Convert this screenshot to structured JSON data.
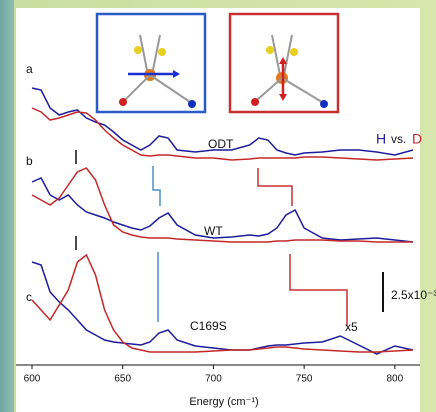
{
  "chart_data": {
    "type": "line",
    "x": [
      600,
      605,
      610,
      615,
      620,
      625,
      630,
      635,
      640,
      645,
      650,
      655,
      660,
      665,
      670,
      675,
      680,
      690,
      700,
      710,
      720,
      725,
      730,
      735,
      740,
      745,
      750,
      760,
      770,
      780,
      790,
      800,
      810
    ],
    "xlim": [
      600,
      810
    ],
    "xticks": [
      600,
      650,
      700,
      750,
      800
    ],
    "ylim": [
      0,
      355
    ],
    "x_label": "Energy (cm⁻¹)",
    "legend_separator": "vs.",
    "scale_bar_label": "2.5x10⁻³",
    "magnification": "x5",
    "panels": [
      {
        "label": "a",
        "sample": "ODT",
        "series": [
          {
            "name": "H",
            "color": "#1c1c9c",
            "values": [
              277,
              275,
              257,
              250,
              253,
              255,
              247,
              243,
              240,
              233,
              225,
              220,
              215,
              220,
              229,
              227,
              215,
              213,
              215,
              215,
              220,
              227,
              225,
              215,
              212,
              210,
              212,
              213,
              215,
              215,
              213,
              210,
              215
            ]
          },
          {
            "name": "D",
            "color": "#c42828",
            "values": [
              257,
              253,
              245,
              247,
              250,
              253,
              252,
              245,
              235,
              227,
              220,
              215,
              210,
              209,
              210,
              210,
              209,
              207,
              207,
              205,
              206,
              207,
              207,
              207,
              207,
              207,
              208,
              208,
              207,
              206,
              205,
              206,
              207
            ]
          }
        ]
      },
      {
        "label": "b",
        "sample": "WT",
        "series": [
          {
            "name": "H",
            "color": "#1c1c9c",
            "values": [
              183,
              187,
              170,
              165,
              170,
              160,
              153,
              150,
              147,
              143,
              140,
              137,
              135,
              139,
              147,
              152,
              140,
              130,
              127,
              128,
              130,
              129,
              131,
              137,
              150,
              155,
              137,
              127,
              125,
              126,
              127,
              125,
              123
            ]
          },
          {
            "name": "D",
            "color": "#c42828",
            "values": [
              170,
              165,
              160,
              167,
              180,
              193,
              197,
              185,
              160,
              140,
              133,
              130,
              128,
              127,
              127,
              127,
              126,
              125,
              124,
              123,
              123,
              123,
              123,
              124,
              124,
              125,
              125,
              125,
              124,
              124,
              123,
              123,
              123
            ]
          }
        ]
      },
      {
        "label": "c",
        "sample": "C169S",
        "series": [
          {
            "name": "H",
            "color": "#1c1c9c",
            "values": [
              103,
              100,
              73,
              63,
              55,
              45,
              35,
              30,
              25,
              23,
              22,
              21,
              20,
              23,
              32,
              35,
              25,
              19,
              17,
              15,
              15,
              17,
              19,
              20,
              20,
              21,
              22,
              23,
              29,
              20,
              11,
              19,
              15
            ]
          },
          {
            "name": "D",
            "color": "#c42828",
            "values": [
              65,
              55,
              45,
              60,
              75,
              103,
              110,
              90,
              55,
              35,
              23,
              17,
              15,
              13,
              13,
              13,
              13,
              13,
              14,
              15,
              15,
              16,
              17,
              18,
              18,
              17,
              16,
              15,
              14,
              13,
              13,
              14,
              15
            ]
          }
        ]
      }
    ]
  }
}
